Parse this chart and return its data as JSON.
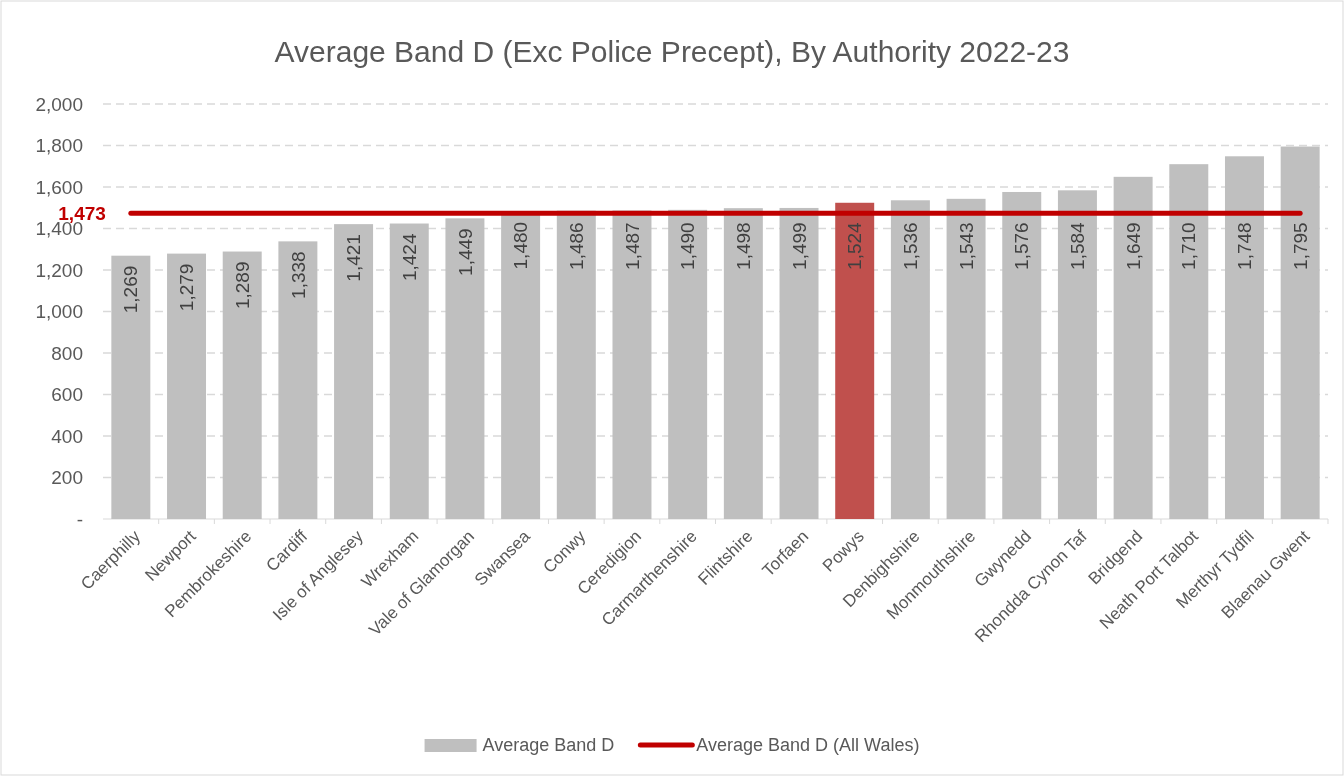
{
  "chart_data": {
    "type": "bar",
    "title": "Average Band D (Exc Police Precept), By Authority 2022-23",
    "categories": [
      "Caerphilly",
      "Newport",
      "Pembrokeshire",
      "Cardiff",
      "Isle of Anglesey",
      "Wrexham",
      "Vale of Glamorgan",
      "Swansea",
      "Conwy",
      "Ceredigion",
      "Carmarthenshire",
      "Flintshire",
      "Torfaen",
      "Powys",
      "Denbighshire",
      "Monmouthshire",
      "Gwynedd",
      "Rhondda Cynon Taf",
      "Bridgend",
      "Neath Port Talbot",
      "Merthyr Tydfil",
      "Blaenau Gwent"
    ],
    "series": [
      {
        "name": "Average Band D",
        "color": "#bfbfbf",
        "colors": [
          "#bfbfbf",
          "#bfbfbf",
          "#bfbfbf",
          "#bfbfbf",
          "#bfbfbf",
          "#bfbfbf",
          "#bfbfbf",
          "#bfbfbf",
          "#bfbfbf",
          "#bfbfbf",
          "#bfbfbf",
          "#bfbfbf",
          "#bfbfbf",
          "#c0504d",
          "#bfbfbf",
          "#bfbfbf",
          "#bfbfbf",
          "#bfbfbf",
          "#bfbfbf",
          "#bfbfbf",
          "#bfbfbf",
          "#bfbfbf"
        ],
        "values": [
          1269,
          1279,
          1289,
          1338,
          1421,
          1424,
          1449,
          1480,
          1486,
          1487,
          1490,
          1498,
          1499,
          1524,
          1536,
          1543,
          1576,
          1584,
          1649,
          1710,
          1748,
          1795
        ],
        "value_labels": [
          "1,269",
          "1,279",
          "1,289",
          "1,338",
          "1,421",
          "1,424",
          "1,449",
          "1,480",
          "1,486",
          "1,487",
          "1,490",
          "1,498",
          "1,499",
          "1,524",
          "1,536",
          "1,543",
          "1,576",
          "1,584",
          "1,649",
          "1,710",
          "1,748",
          "1,795"
        ]
      },
      {
        "name": "Average Band D (All Wales)",
        "type": "line",
        "color": "#c00000",
        "values": [
          1473,
          1473,
          1473,
          1473,
          1473,
          1473,
          1473,
          1473,
          1473,
          1473,
          1473,
          1473,
          1473,
          1473,
          1473,
          1473,
          1473,
          1473,
          1473,
          1473,
          1473,
          1473
        ],
        "value_labels": [
          "1,473",
          null,
          null,
          null,
          null,
          null,
          null,
          null,
          null,
          null,
          null,
          null,
          null,
          null,
          null,
          null,
          null,
          null,
          null,
          null,
          null,
          null
        ]
      }
    ],
    "ylim": [
      0,
      2000
    ],
    "yticks": [
      {
        "value": 0,
        "label": "-"
      },
      {
        "value": 200,
        "label": "200"
      },
      {
        "value": 400,
        "label": "400"
      },
      {
        "value": 600,
        "label": "600"
      },
      {
        "value": 800,
        "label": "800"
      },
      {
        "value": 1000,
        "label": "1,000"
      },
      {
        "value": 1200,
        "label": "1,200"
      },
      {
        "value": 1400,
        "label": "1,400"
      },
      {
        "value": 1600,
        "label": "1,600"
      },
      {
        "value": 1800,
        "label": "1,800"
      },
      {
        "value": 2000,
        "label": "2,000"
      }
    ],
    "grid": "y",
    "legend": "bottom",
    "marker": "none"
  }
}
